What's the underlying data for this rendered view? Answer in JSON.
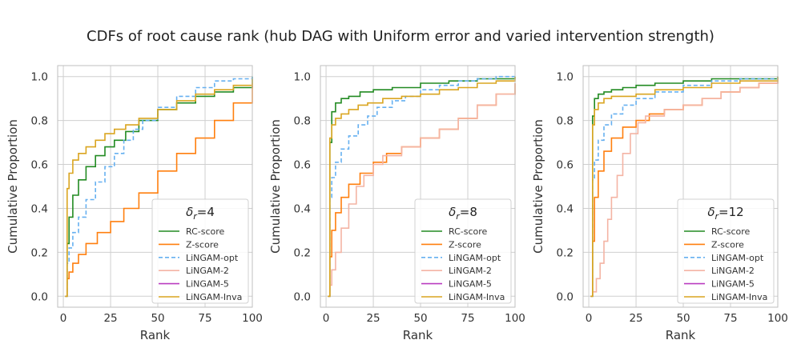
{
  "figure_title": "CDFs of root cause rank (hub DAG with Uniform error and varied intervention strength)",
  "colors": {
    "RC-score": "#228B22",
    "Z-score": "#FF7F0E",
    "LiNGAM-opt": "#66B0F0",
    "LiNGAM-2": "#F4B4A4",
    "LiNGAM-5": "#BA3CC0",
    "LiNGAM-Inva": "#DAA520"
  },
  "chart_data": [
    {
      "type": "line",
      "legend_title": "δ_r=4",
      "legend_title_base": "δ",
      "legend_title_sub": "r",
      "legend_title_rest": "=4",
      "xlabel": "Rank",
      "ylabel": "Cumulative Proportion",
      "xlim": [
        -3,
        100
      ],
      "ylim": [
        -0.05,
        1.05
      ],
      "xticks": [
        0,
        25,
        50,
        75,
        100
      ],
      "yticks": [
        0.0,
        0.2,
        0.4,
        0.6,
        0.8,
        1.0
      ],
      "xtick_labels": [
        "0",
        "25",
        "50",
        "75",
        "100"
      ],
      "ytick_labels": [
        "0.0",
        "0.2",
        "0.4",
        "0.6",
        "0.8",
        "1.0"
      ],
      "grid": true,
      "legend_position": "lower-right",
      "series": [
        {
          "name": "RC-score",
          "style": "solid",
          "x": [
            1,
            2,
            3,
            5,
            8,
            12,
            17,
            22,
            27,
            33,
            40,
            50,
            60,
            70,
            80,
            90,
            100
          ],
          "y": [
            0.0,
            0.24,
            0.36,
            0.46,
            0.53,
            0.59,
            0.64,
            0.68,
            0.71,
            0.75,
            0.8,
            0.85,
            0.88,
            0.91,
            0.93,
            0.95,
            1.0
          ]
        },
        {
          "name": "Z-score",
          "style": "solid",
          "x": [
            1,
            2,
            3,
            5,
            8,
            12,
            18,
            25,
            32,
            40,
            50,
            60,
            70,
            80,
            90,
            100
          ],
          "y": [
            0.0,
            0.08,
            0.11,
            0.15,
            0.19,
            0.24,
            0.29,
            0.34,
            0.4,
            0.47,
            0.57,
            0.65,
            0.72,
            0.8,
            0.88,
            0.97
          ]
        },
        {
          "name": "LiNGAM-opt",
          "style": "dashed",
          "x": [
            1,
            2,
            3,
            5,
            8,
            12,
            17,
            22,
            27,
            32,
            37,
            42,
            50,
            60,
            70,
            80,
            90,
            100
          ],
          "y": [
            0.0,
            0.15,
            0.22,
            0.29,
            0.36,
            0.44,
            0.52,
            0.59,
            0.65,
            0.71,
            0.76,
            0.8,
            0.86,
            0.91,
            0.95,
            0.98,
            0.99,
            1.0
          ]
        },
        {
          "name": "LiNGAM-2",
          "style": "solid",
          "x": [],
          "y": []
        },
        {
          "name": "LiNGAM-5",
          "style": "solid",
          "x": [],
          "y": []
        },
        {
          "name": "LiNGAM-Inva",
          "style": "solid",
          "x": [
            1,
            2,
            3,
            5,
            8,
            12,
            17,
            22,
            27,
            33,
            40,
            50,
            60,
            70,
            80,
            90,
            100
          ],
          "y": [
            0.0,
            0.49,
            0.56,
            0.62,
            0.65,
            0.68,
            0.71,
            0.74,
            0.76,
            0.78,
            0.81,
            0.85,
            0.89,
            0.92,
            0.94,
            0.96,
            0.99
          ]
        }
      ]
    },
    {
      "type": "line",
      "legend_title": "δ_r=8",
      "legend_title_base": "δ",
      "legend_title_sub": "r",
      "legend_title_rest": "=8",
      "xlabel": "Rank",
      "ylabel": "Cumulative Proportion",
      "xlim": [
        -3,
        100
      ],
      "ylim": [
        -0.05,
        1.05
      ],
      "xticks": [
        0,
        25,
        50,
        75,
        100
      ],
      "yticks": [
        0.0,
        0.2,
        0.4,
        0.6,
        0.8,
        1.0
      ],
      "xtick_labels": [
        "0",
        "25",
        "50",
        "75",
        "100"
      ],
      "ytick_labels": [
        "0.0",
        "0.2",
        "0.4",
        "0.6",
        "0.8",
        "1.0"
      ],
      "grid": true,
      "legend_position": "lower-right",
      "series": [
        {
          "name": "RC-score",
          "style": "solid",
          "x": [
            1,
            2,
            3,
            5,
            8,
            12,
            18,
            25,
            35,
            50,
            65,
            80,
            100
          ],
          "y": [
            0.0,
            0.7,
            0.84,
            0.88,
            0.9,
            0.91,
            0.93,
            0.94,
            0.95,
            0.97,
            0.98,
            0.99,
            1.0
          ]
        },
        {
          "name": "Z-score",
          "style": "solid",
          "x": [
            1,
            2,
            3,
            5,
            8,
            12,
            18,
            25,
            32,
            40,
            50,
            60,
            70,
            80,
            90,
            100
          ],
          "y": [
            0.0,
            0.18,
            0.3,
            0.38,
            0.45,
            0.51,
            0.56,
            0.61,
            0.65,
            0.68,
            0.72,
            0.76,
            0.81,
            0.87,
            0.92,
            0.97
          ]
        },
        {
          "name": "LiNGAM-opt",
          "style": "dashed",
          "x": [
            1,
            2,
            3,
            5,
            8,
            12,
            17,
            22,
            27,
            35,
            42,
            50,
            60,
            70,
            80,
            90,
            100
          ],
          "y": [
            0.0,
            0.45,
            0.54,
            0.61,
            0.67,
            0.73,
            0.78,
            0.82,
            0.86,
            0.89,
            0.91,
            0.94,
            0.96,
            0.98,
            0.99,
            1.0,
            1.0
          ]
        },
        {
          "name": "LiNGAM-2",
          "style": "solid",
          "x": [
            1,
            2,
            3,
            5,
            8,
            12,
            16,
            20,
            25,
            30,
            40,
            50,
            60,
            70,
            80,
            90,
            100
          ],
          "y": [
            0.0,
            0.05,
            0.12,
            0.2,
            0.31,
            0.42,
            0.5,
            0.55,
            0.6,
            0.64,
            0.68,
            0.72,
            0.76,
            0.81,
            0.87,
            0.92,
            0.97
          ]
        },
        {
          "name": "LiNGAM-5",
          "style": "solid",
          "x": [],
          "y": []
        },
        {
          "name": "LiNGAM-Inva",
          "style": "solid",
          "x": [
            1,
            2,
            3,
            5,
            8,
            12,
            17,
            22,
            30,
            40,
            50,
            60,
            70,
            80,
            90,
            100
          ],
          "y": [
            0.0,
            0.72,
            0.78,
            0.81,
            0.83,
            0.85,
            0.87,
            0.88,
            0.9,
            0.91,
            0.92,
            0.94,
            0.95,
            0.97,
            0.98,
            1.0
          ]
        }
      ]
    },
    {
      "type": "line",
      "legend_title": "δ_r=12",
      "legend_title_base": "δ",
      "legend_title_sub": "r",
      "legend_title_rest": "=12",
      "xlabel": "Rank",
      "ylabel": "Cumulative Proportion",
      "xlim": [
        -3,
        100
      ],
      "ylim": [
        -0.05,
        1.05
      ],
      "xticks": [
        0,
        25,
        50,
        75,
        100
      ],
      "yticks": [
        0.0,
        0.2,
        0.4,
        0.6,
        0.8,
        1.0
      ],
      "xtick_labels": [
        "0",
        "25",
        "50",
        "75",
        "100"
      ],
      "ytick_labels": [
        "0.0",
        "0.2",
        "0.4",
        "0.6",
        "0.8",
        "1.0"
      ],
      "grid": true,
      "legend_position": "lower-right",
      "series": [
        {
          "name": "RC-score",
          "style": "solid",
          "x": [
            1,
            2,
            3,
            5,
            8,
            12,
            18,
            25,
            35,
            50,
            65,
            80,
            100
          ],
          "y": [
            0.0,
            0.82,
            0.9,
            0.92,
            0.93,
            0.94,
            0.95,
            0.96,
            0.97,
            0.98,
            0.99,
            0.99,
            1.0
          ]
        },
        {
          "name": "Z-score",
          "style": "solid",
          "x": [
            1,
            2,
            3,
            5,
            8,
            12,
            18,
            25,
            32,
            40,
            50,
            60,
            70,
            80,
            90,
            100
          ],
          "y": [
            0.0,
            0.25,
            0.45,
            0.57,
            0.66,
            0.72,
            0.77,
            0.8,
            0.83,
            0.85,
            0.87,
            0.9,
            0.93,
            0.95,
            0.97,
            0.99
          ]
        },
        {
          "name": "LiNGAM-opt",
          "style": "dashed",
          "x": [
            1,
            2,
            3,
            5,
            8,
            12,
            18,
            25,
            35,
            50,
            65,
            80,
            100
          ],
          "y": [
            0.0,
            0.53,
            0.62,
            0.71,
            0.78,
            0.83,
            0.87,
            0.9,
            0.93,
            0.96,
            0.98,
            0.99,
            1.0
          ]
        },
        {
          "name": "LiNGAM-2",
          "style": "solid",
          "x": [
            1,
            2,
            4,
            6,
            8,
            10,
            12,
            15,
            18,
            22,
            26,
            30,
            40,
            50,
            60,
            70,
            80,
            90,
            100
          ],
          "y": [
            0.0,
            0.02,
            0.08,
            0.15,
            0.25,
            0.35,
            0.45,
            0.55,
            0.65,
            0.74,
            0.79,
            0.82,
            0.85,
            0.87,
            0.9,
            0.93,
            0.95,
            0.97,
            0.99
          ]
        },
        {
          "name": "LiNGAM-5",
          "style": "solid",
          "x": [],
          "y": []
        },
        {
          "name": "LiNGAM-Inva",
          "style": "solid",
          "x": [
            1,
            2,
            3,
            5,
            8,
            12,
            18,
            25,
            35,
            50,
            65,
            80,
            100
          ],
          "y": [
            0.0,
            0.78,
            0.85,
            0.88,
            0.9,
            0.91,
            0.91,
            0.92,
            0.94,
            0.95,
            0.97,
            0.98,
            1.0
          ]
        }
      ]
    }
  ]
}
